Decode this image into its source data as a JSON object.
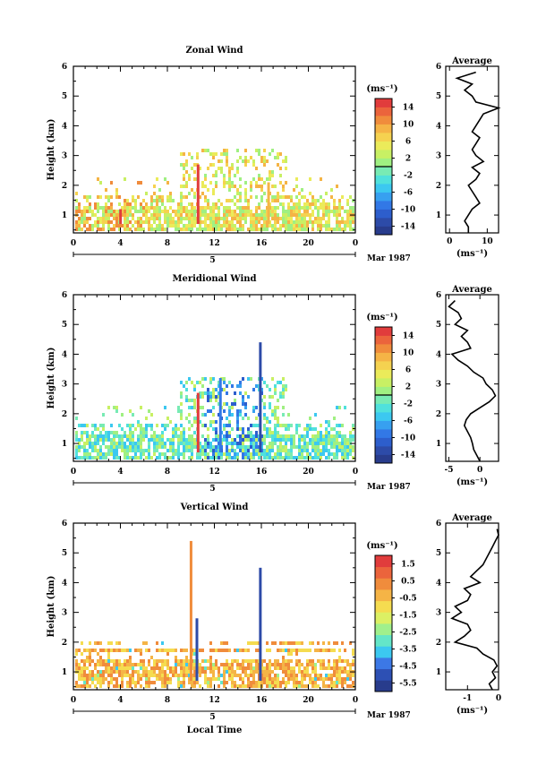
{
  "chart_data": [
    {
      "type": "heatmap",
      "title": "Zonal Wind",
      "ylabel": "Height (km)",
      "xlabel": "",
      "xlim": [
        0,
        24
      ],
      "ylim": [
        0.4,
        6
      ],
      "x_ticks": [
        "0",
        "4",
        "8",
        "12",
        "16",
        "20",
        "0"
      ],
      "y_ticks": [
        "1",
        "2",
        "3",
        "4",
        "5",
        "6"
      ],
      "date_marker": "5",
      "date_label": "Mar 1987",
      "colorbar": {
        "unit": "(ms⁻¹)",
        "range": [
          -16,
          16
        ],
        "ticks": [
          "14",
          "10",
          "6",
          "2",
          "-2",
          "-6",
          "-10",
          "-14"
        ]
      },
      "profile": {
        "title": "Average",
        "xlabel": "(ms⁻¹)",
        "xlim": [
          -1,
          13
        ],
        "x_ticks": [
          "0",
          "10"
        ],
        "heights": [
          0.4,
          0.6,
          0.8,
          1.0,
          1.2,
          1.4,
          1.6,
          1.8,
          2.0,
          2.2,
          2.4,
          2.6,
          2.8,
          3.0,
          3.2,
          3.4,
          3.6,
          3.8,
          4.0,
          4.2,
          4.4,
          4.6,
          4.8,
          5.0,
          5.2,
          5.4,
          5.6,
          5.8
        ],
        "values": [
          5,
          5,
          4,
          5,
          6,
          8,
          7,
          6,
          5,
          7,
          8,
          6,
          9,
          7,
          6,
          7,
          8,
          6,
          7,
          8,
          9,
          13,
          7,
          6,
          4,
          6,
          2,
          7
        ]
      }
    },
    {
      "type": "heatmap",
      "title": "Meridional Wind",
      "ylabel": "Height (km)",
      "xlabel": "",
      "xlim": [
        0,
        24
      ],
      "ylim": [
        0.4,
        6
      ],
      "x_ticks": [
        "0",
        "4",
        "8",
        "12",
        "16",
        "20",
        "0"
      ],
      "y_ticks": [
        "1",
        "2",
        "3",
        "4",
        "5",
        "6"
      ],
      "date_marker": "5",
      "date_label": "Mar 1987",
      "colorbar": {
        "unit": "(ms⁻¹)",
        "range": [
          -16,
          16
        ],
        "ticks": [
          "14",
          "10",
          "6",
          "2",
          "-2",
          "-6",
          "-10",
          "-14"
        ]
      },
      "profile": {
        "title": "Average",
        "xlabel": "(ms⁻¹)",
        "xlim": [
          -5.5,
          3
        ],
        "x_ticks": [
          "-5",
          "0"
        ],
        "heights": [
          0.4,
          0.6,
          0.8,
          1.0,
          1.2,
          1.4,
          1.6,
          1.8,
          2.0,
          2.2,
          2.4,
          2.6,
          2.8,
          3.0,
          3.2,
          3.4,
          3.6,
          3.8,
          4.0,
          4.2,
          4.4,
          4.6,
          4.8,
          5.0,
          5.2,
          5.4,
          5.6,
          5.8
        ],
        "values": [
          0,
          -0.5,
          -1,
          -1.2,
          -1.5,
          -2,
          -2.5,
          -2.2,
          -1.5,
          0,
          1.5,
          2.5,
          2,
          1,
          0.5,
          -1,
          -2,
          -3.5,
          -4.5,
          -1.5,
          -2,
          -3,
          -2,
          -4,
          -3,
          -3.5,
          -5,
          -4
        ]
      }
    },
    {
      "type": "heatmap",
      "title": "Vertical Wind",
      "ylabel": "Height (km)",
      "xlabel": "Local Time",
      "xlim": [
        0,
        24
      ],
      "ylim": [
        0.4,
        6
      ],
      "x_ticks": [
        "0",
        "4",
        "8",
        "12",
        "16",
        "20",
        "0"
      ],
      "y_ticks": [
        "1",
        "2",
        "3",
        "4",
        "5",
        "6"
      ],
      "date_marker": "5",
      "date_label": "Mar 1987",
      "colorbar": {
        "unit": "(ms⁻¹)",
        "range": [
          -6,
          2
        ],
        "ticks": [
          "1.5",
          "0.5",
          "-0.5",
          "-1.5",
          "-2.5",
          "-3.5",
          "-4.5",
          "-5.5"
        ]
      },
      "profile": {
        "title": "Average",
        "xlabel": "(ms⁻¹)",
        "xlim": [
          -1.7,
          0
        ],
        "x_ticks": [
          "-1",
          "0"
        ],
        "heights": [
          0.4,
          0.6,
          0.8,
          1.0,
          1.2,
          1.4,
          1.6,
          1.8,
          2.0,
          2.2,
          2.4,
          2.6,
          2.8,
          3.0,
          3.2,
          3.4,
          3.6,
          3.8,
          4.0,
          4.2,
          4.4,
          4.6,
          4.8,
          5.0,
          5.2,
          5.4,
          5.6,
          5.8
        ],
        "values": [
          -0.2,
          -0.3,
          -0.1,
          -0.2,
          -0.05,
          -0.15,
          -0.5,
          -0.7,
          -1.4,
          -1.1,
          -0.9,
          -1.0,
          -1.5,
          -1.2,
          -1.4,
          -1.0,
          -0.9,
          -1.1,
          -0.6,
          -0.9,
          -0.7,
          -0.5,
          -0.4,
          -0.3,
          -0.2,
          -0.1,
          0,
          -0.05
        ]
      }
    }
  ]
}
